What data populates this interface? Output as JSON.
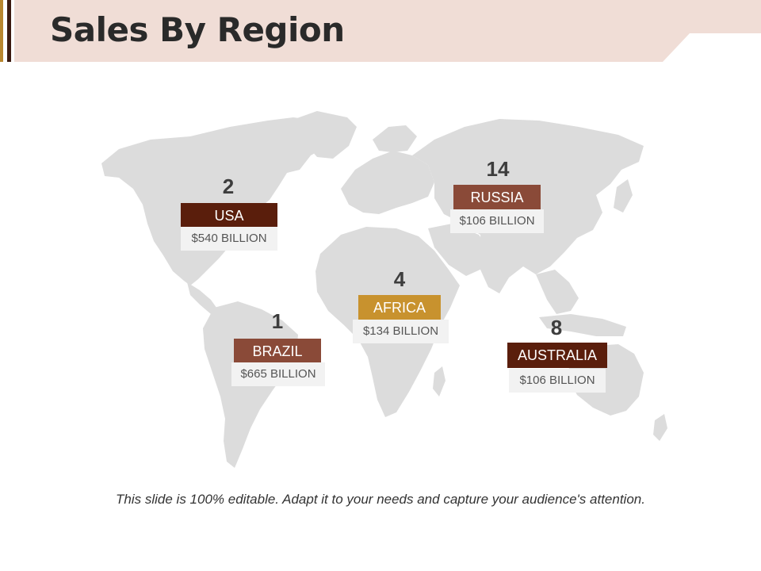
{
  "slide": {
    "title": "Sales By Region",
    "footer": "This slide is 100% editable. Adapt it to your needs and capture your audience's attention."
  },
  "colors": {
    "title_band": "#f0ddd6",
    "accent_gold": "#b8862e",
    "accent_dark": "#3a1a10",
    "map_fill": "#dcdcdc",
    "value_box": "#f2f2f2"
  },
  "regions": [
    {
      "id": "usa",
      "name": "USA",
      "count": "2",
      "value": "$540 BILLION",
      "color": "#5a1e0c"
    },
    {
      "id": "brazil",
      "name": "BRAZIL",
      "count": "1",
      "value": "$665 BILLION",
      "color": "#8a4a38"
    },
    {
      "id": "africa",
      "name": "AFRICA",
      "count": "4",
      "value": "$134 BILLION",
      "color": "#c8922e"
    },
    {
      "id": "russia",
      "name": "RUSSIA",
      "count": "14",
      "value": "$106 BILLION",
      "color": "#8a4a38"
    },
    {
      "id": "australia",
      "name": "AUSTRALIA",
      "count": "8",
      "value": "$106 BILLION",
      "color": "#5a1e0c"
    }
  ]
}
